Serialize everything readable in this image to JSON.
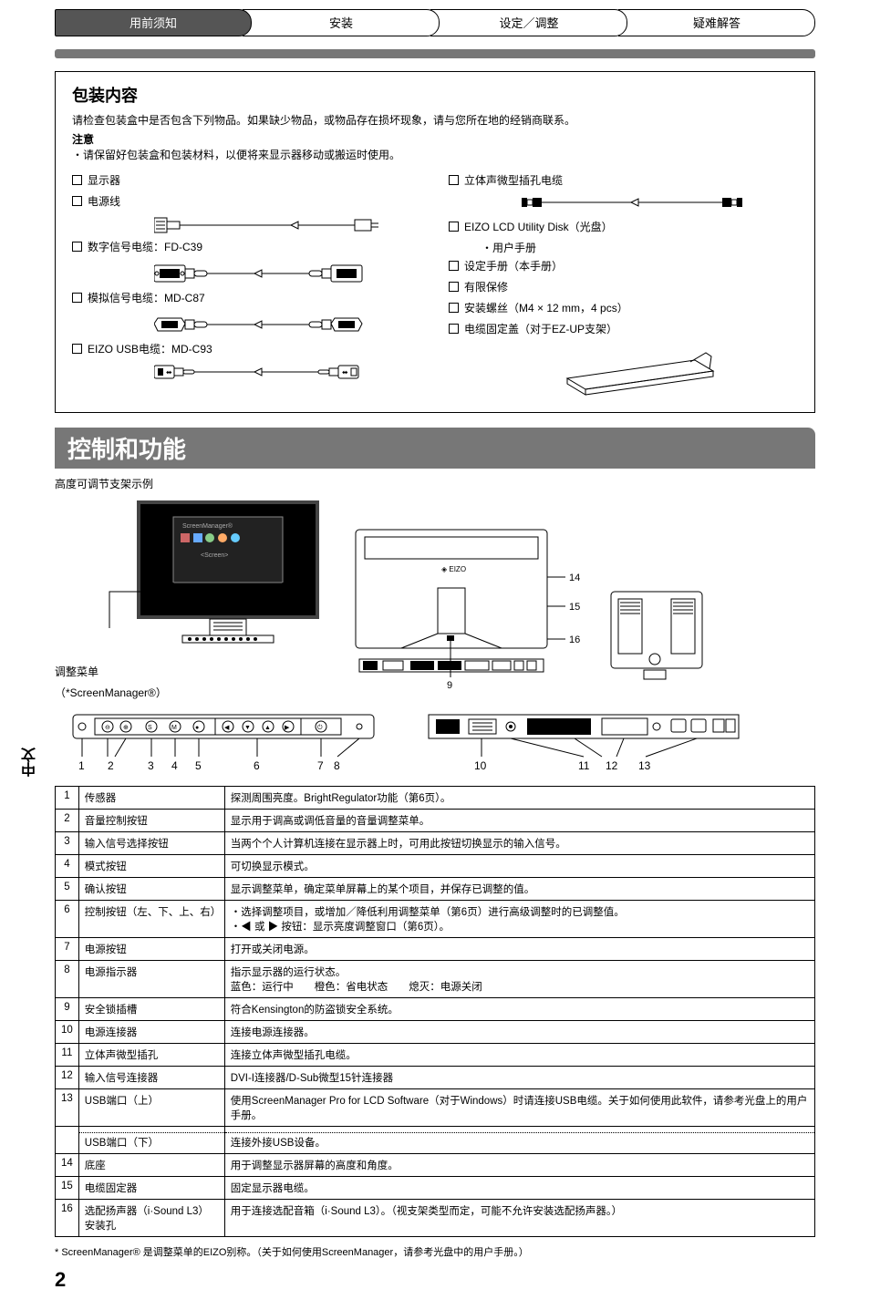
{
  "tabs": [
    "用前须知",
    "安装",
    "设定／调整",
    "疑难解答"
  ],
  "pkg": {
    "title": "包装内容",
    "intro": "请检查包装盒中是否包含下列物品。如果缺少物品，或物品存在损坏现象，请与您所在地的经销商联系。",
    "note_label": "注意",
    "note": "・请保留好包装盒和包装材料，以便将来显示器移动或搬运时使用。",
    "left_items": [
      "显示器",
      "电源线",
      "数字信号电缆：FD-C39",
      "模拟信号电缆：MD-C87",
      "EIZO USB电缆：MD-C93"
    ],
    "right_items": [
      "立体声微型插孔电缆",
      "EIZO LCD Utility Disk（光盘）",
      "设定手册（本手册）",
      "有限保修",
      "安装螺丝（M4 × 12 mm，4 pcs）",
      "电缆固定盖（对于EZ-UP支架）"
    ],
    "right_sub": "・用户手册"
  },
  "section_title": "控制和功能",
  "stand_note": "高度可调节支架示例",
  "adj_label1": "调整菜单",
  "adj_label2": "（*ScreenManager®）",
  "labels_1to8": [
    "1",
    "2",
    "3",
    "4",
    "5",
    "6",
    "7",
    "8"
  ],
  "labels_9to16": {
    "9": "9",
    "10": "10",
    "11": "11",
    "12": "12",
    "13": "13",
    "14": "14",
    "15": "15",
    "16": "16"
  },
  "ctl_rows": [
    {
      "n": "1",
      "name": "传感器",
      "desc": "探测周围亮度。BrightRegulator功能（第6页）。"
    },
    {
      "n": "2",
      "name": "音量控制按钮",
      "desc": "显示用于调高或调低音量的音量调整菜单。"
    },
    {
      "n": "3",
      "name": "输入信号选择按钮",
      "desc": "当两个个人计算机连接在显示器上时，可用此按钮切换显示的输入信号。"
    },
    {
      "n": "4",
      "name": "模式按钮",
      "desc": "可切换显示模式。"
    },
    {
      "n": "5",
      "name": "确认按钮",
      "desc": "显示调整菜单，确定菜单屏幕上的某个项目，并保存已调整的值。"
    },
    {
      "n": "6",
      "name": "控制按钮（左、下、上、右）",
      "desc": "・选择调整项目，或增加／降低利用调整菜单（第6页）进行高级调整时的已调整值。\n・◀ 或 ▶ 按钮：显示亮度调整窗口（第6页）。"
    },
    {
      "n": "7",
      "name": "电源按钮",
      "desc": "打开或关闭电源。"
    },
    {
      "n": "8",
      "name": "电源指示器",
      "desc": "指示显示器的运行状态。\n蓝色：运行中　　橙色：省电状态　　熄灭：电源关闭"
    },
    {
      "n": "9",
      "name": "安全锁插槽",
      "desc": "符合Kensington的防盗锁安全系统。"
    },
    {
      "n": "10",
      "name": "电源连接器",
      "desc": "连接电源连接器。"
    },
    {
      "n": "11",
      "name": "立体声微型插孔",
      "desc": "连接立体声微型插孔电缆。"
    },
    {
      "n": "12",
      "name": "输入信号连接器",
      "desc": "DVI-I连接器/D-Sub微型15针连接器"
    },
    {
      "n": "13",
      "name": "USB端口（上）",
      "desc": "使用ScreenManager Pro for LCD Software（对于Windows）时请连接USB电缆。关于如何使用此软件，请参考光盘上的用户手册。"
    },
    {
      "n": "",
      "name": "USB端口（下）",
      "desc": "连接外接USB设备。"
    },
    {
      "n": "14",
      "name": "底座",
      "desc": "用于调整显示器屏幕的高度和角度。"
    },
    {
      "n": "15",
      "name": "电缆固定器",
      "desc": "固定显示器电缆。"
    },
    {
      "n": "16",
      "name": "选配扬声器（i·Sound L3）安装孔",
      "desc": "用于连接选配音箱（i·Sound L3）。（视支架类型而定，可能不允许安装选配扬声器。）"
    }
  ],
  "usb_sub_name": "USB端口（下）",
  "usb_sub_desc": "连接外接USB设备。",
  "footnote": "* ScreenManager® 是调整菜单的EIZO别称。（关于如何使用ScreenManager，请参考光盘中的用户手册。）",
  "page_num": "2",
  "side_label": "中文"
}
